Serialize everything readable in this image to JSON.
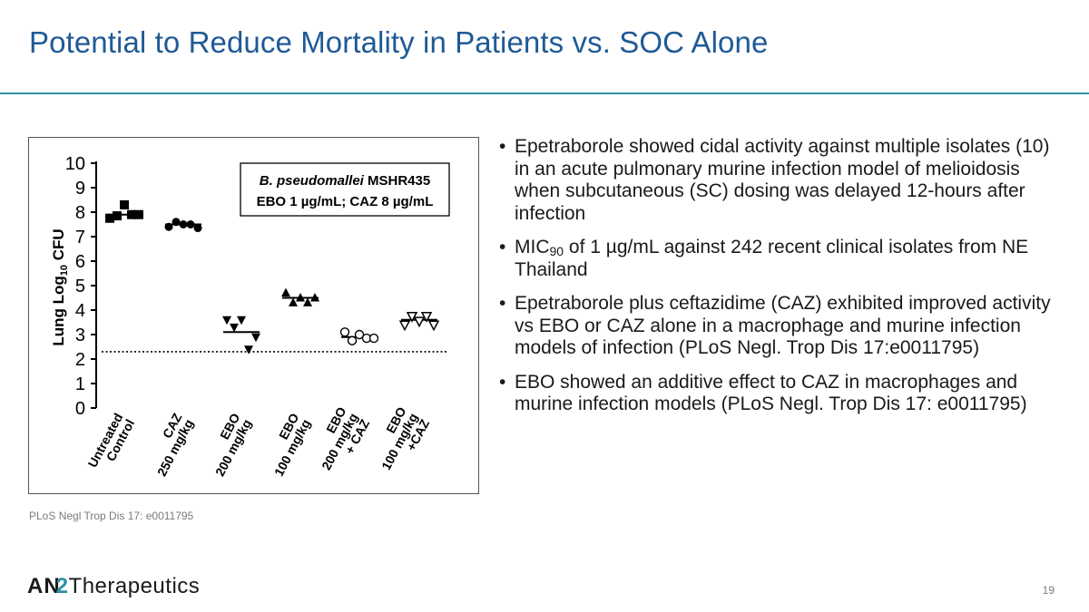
{
  "slide": {
    "title": "Potential to Reduce Mortality in Patients vs. SOC Alone",
    "source": "PLoS Negl Trop Dis 17: e0011795",
    "page_number": "19",
    "logo": {
      "part1": "AN",
      "part2": "2",
      "part3": "Therapeutics"
    }
  },
  "bullets": [
    {
      "text": "Epetraborole showed cidal activity against multiple isolates (10) in an acute pulmonary murine infection model of melioidosis when subcutaneous (SC) dosing was delayed 12-hours after infection"
    },
    {
      "pre": "MIC",
      "sub": "90",
      "post": " of 1 µg/mL against 242 recent clinical isolates from NE Thailand"
    },
    {
      "text": "Epetraborole plus ceftazidime (CAZ) exhibited improved activity vs EBO or CAZ alone in a macrophage and murine infection models of infection (PLoS Negl. Trop Dis 17:e0011795)"
    },
    {
      "text": "EBO showed an additive effect to CAZ in macrophages and murine infection models  (PLoS Negl. Trop Dis 17: e0011795)"
    }
  ],
  "chart_data": {
    "type": "scatter",
    "ylabel": {
      "pre": "Lung Log",
      "sub": "10",
      "post": " CFU"
    },
    "ylim": [
      0,
      10
    ],
    "yticks": [
      "0",
      "1",
      "2",
      "3",
      "4",
      "5",
      "6",
      "7",
      "8",
      "9",
      "10"
    ],
    "annotation": {
      "line1_italic": "B. pseudomallei",
      "line1_rest": " MSHR435",
      "line2": "EBO 1 µg/mL; CAZ 8 µg/mL"
    },
    "limit_of_detection": 2.3,
    "groups": [
      {
        "label": [
          "Untreated",
          "Control"
        ],
        "marker": "square-filled",
        "mean": 7.9,
        "values": [
          7.75,
          7.85,
          8.3,
          7.9,
          7.9
        ]
      },
      {
        "label": [
          "CAZ",
          "250 mg/kg"
        ],
        "marker": "circle-filled",
        "mean": 7.5,
        "values": [
          7.4,
          7.6,
          7.5,
          7.5,
          7.35
        ]
      },
      {
        "label": [
          "EBO",
          "200 mg/kg"
        ],
        "marker": "triangle-down-filled",
        "mean": 3.1,
        "values": [
          3.6,
          3.3,
          3.6,
          2.4,
          2.9
        ]
      },
      {
        "label": [
          "EBO",
          "100 mg/kg"
        ],
        "marker": "triangle-up-filled",
        "mean": 4.5,
        "values": [
          4.7,
          4.3,
          4.5,
          4.3,
          4.5
        ]
      },
      {
        "label": [
          "EBO",
          "200 mg/kg",
          "+ CAZ"
        ],
        "marker": "circle-open",
        "mean": 2.9,
        "values": [
          3.1,
          2.75,
          3.0,
          2.85,
          2.85
        ]
      },
      {
        "label": [
          "EBO",
          "100 mg/kg",
          "+CAZ"
        ],
        "marker": "triangle-down-open",
        "mean": 3.6,
        "values": [
          3.4,
          3.75,
          3.55,
          3.75,
          3.4
        ]
      }
    ]
  }
}
